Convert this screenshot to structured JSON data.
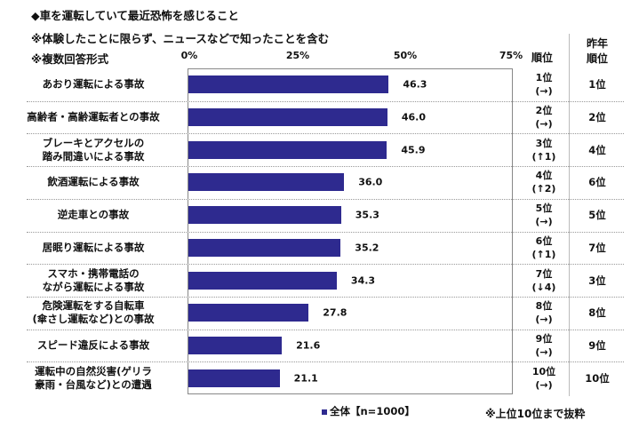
{
  "chart_data": {
    "type": "bar",
    "orientation": "horizontal",
    "title": "◆車を運転していて最近恐怖を感じること",
    "notes": [
      "※体験したことに限らず、ニュースなどで知ったことを含む",
      "※複数回答形式"
    ],
    "xlim": [
      0,
      75
    ],
    "x_ticks": [
      "0%",
      "25%",
      "50%",
      "75%"
    ],
    "grid": false,
    "categories": [
      [
        "あおり運転による事故"
      ],
      [
        "高齢者・高齢運転者との事故"
      ],
      [
        "ブレーキとアクセルの",
        "踏み間違いによる事故"
      ],
      [
        "飲酒運転による事故"
      ],
      [
        "逆走車との事故"
      ],
      [
        "居眠り運転による事故"
      ],
      [
        "スマホ・携帯電話の",
        "ながら運転による事故"
      ],
      [
        "危険運転をする自転車",
        "(傘さし運転など)との事故"
      ],
      [
        "スピード違反による事故"
      ],
      [
        "運転中の自然災害(ゲリラ",
        "豪雨・台風など)との遭遇"
      ]
    ],
    "series": [
      {
        "name": "全体【n=1000】",
        "color": "#2e2a8f",
        "values": [
          46.3,
          46.0,
          45.9,
          36.0,
          35.3,
          35.2,
          34.3,
          27.8,
          21.6,
          21.1
        ]
      }
    ],
    "value_labels": [
      "46.3",
      "46.0",
      "45.9",
      "36.0",
      "35.3",
      "35.2",
      "34.3",
      "27.8",
      "21.6",
      "21.1"
    ],
    "legend": "bottom",
    "rank_header": "順位",
    "prev_rank_header": [
      "昨年",
      "順位"
    ],
    "ranks": [
      "1位",
      "2位",
      "3位",
      "4位",
      "5位",
      "6位",
      "7位",
      "8位",
      "9位",
      "10位"
    ],
    "rank_changes": [
      {
        "text": "(→)",
        "dir": "same"
      },
      {
        "text": "(→)",
        "dir": "same"
      },
      {
        "text": "(↑1)",
        "dir": "up"
      },
      {
        "text": "(↑2)",
        "dir": "up"
      },
      {
        "text": "(→)",
        "dir": "same"
      },
      {
        "text": "(↑1)",
        "dir": "up"
      },
      {
        "text": "(↓4)",
        "dir": "down"
      },
      {
        "text": "(→)",
        "dir": "same"
      },
      {
        "text": "(→)",
        "dir": "same"
      },
      {
        "text": "(→)",
        "dir": "same"
      }
    ],
    "prev_ranks": [
      "1位",
      "2位",
      "4位",
      "6位",
      "5位",
      "7位",
      "3位",
      "8位",
      "9位",
      "10位"
    ],
    "footnote": "※上位10位まで抜粋",
    "colors": {
      "up_arrow": "#c0284a"
    }
  }
}
